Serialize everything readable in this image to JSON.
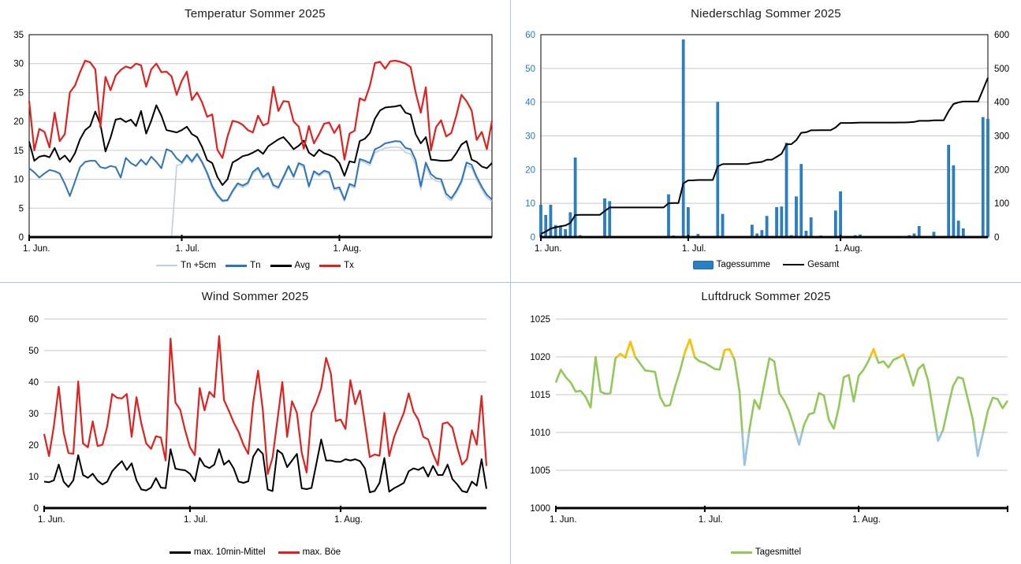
{
  "x_axis": {
    "tick_labels": [
      "1. Jun.",
      "1. Jul.",
      "1. Aug."
    ],
    "tick_day_indices": [
      0,
      30,
      61
    ],
    "num_days": 92
  },
  "colors": {
    "grid": "#c9c9c9",
    "axis": "#000000",
    "panel_border": "#aac6e0",
    "precip_axis_labels_left": "#1f7ac4",
    "tn5": "#bccfe5",
    "tn": "#2e75b6",
    "avg": "#000000",
    "tx": "#dd2321",
    "bar_fill": "#2980c5",
    "bar_stroke": "#1c6bab",
    "gesamt": "#000000",
    "mittel": "#000000",
    "boee": "#dd2321",
    "druck_green": "#92c85a",
    "druck_high": "#ffc000",
    "druck_low": "#9cc3e5"
  },
  "chart_data": [
    {
      "type": "line",
      "title": "Temperatur Sommer 2025",
      "ylabel": "",
      "ylim": [
        0,
        35
      ],
      "y_ticks": [
        0,
        5,
        10,
        15,
        20,
        25,
        30,
        35
      ],
      "grid": true,
      "legend_position": "bottom",
      "legend": [
        {
          "label": "Tn +5cm",
          "swatch": "line",
          "color": "#bccfe5",
          "thick": 2
        },
        {
          "label": "Tn",
          "swatch": "line",
          "color": "#2e75b6",
          "thick": 3
        },
        {
          "label": "Avg",
          "swatch": "line",
          "color": "#000000",
          "thick": 3
        },
        {
          "label": "Tx",
          "swatch": "line",
          "color": "#dd2321",
          "thick": 3
        }
      ],
      "series": [
        {
          "name": "Tn +5cm",
          "color": "#bccfe5",
          "width": 1.6,
          "values": [
            0,
            0,
            0,
            0,
            0,
            0,
            0,
            0,
            0,
            0,
            0,
            0,
            0,
            0,
            0,
            0,
            0,
            0,
            0,
            0,
            0,
            0,
            0,
            0,
            0,
            0,
            0,
            0,
            0,
            12.4,
            12.6,
            13.9,
            12.8,
            14.1,
            12.7,
            10.8,
            8.4,
            7.0,
            6.1,
            6.2,
            7.7,
            9.0,
            8.6,
            9.1,
            11.0,
            11.7,
            10.1,
            10.8,
            8.7,
            8.3,
            10.1,
            12.0,
            10.2,
            12.5,
            12.1,
            8.5,
            11.1,
            10.5,
            11.2,
            10.9,
            8.1,
            8.3,
            6.2,
            8.9,
            8.5,
            13.2,
            12.9,
            12.4,
            14.6,
            15.0,
            15.4,
            15.5,
            15.6,
            15.5,
            14.6,
            14.4,
            12.5,
            8.2,
            12.3,
            10.3,
            9.7,
            9.5,
            7.0,
            6.3,
            7.6,
            9.2,
            12.4,
            12.0,
            9.9,
            8.2,
            6.8,
            6.2
          ]
        },
        {
          "name": "Tn",
          "color": "#2e75b6",
          "width": 2,
          "values": [
            11.9,
            11.2,
            10.3,
            11.0,
            11.6,
            11.4,
            11.0,
            9.2,
            7.1,
            9.6,
            12.1,
            13.0,
            13.2,
            13.2,
            12.1,
            11.9,
            12.3,
            12.1,
            10.3,
            13.7,
            12.8,
            12.3,
            13.4,
            12.5,
            13.9,
            13.0,
            11.9,
            15.2,
            14.8,
            13.6,
            12.9,
            14.2,
            13.1,
            14.4,
            13.0,
            11.1,
            8.8,
            7.3,
            6.3,
            6.4,
            8.0,
            9.3,
            8.9,
            9.4,
            11.3,
            12.0,
            10.4,
            11.1,
            9.0,
            8.6,
            10.4,
            12.3,
            10.5,
            12.8,
            12.4,
            8.8,
            11.4,
            10.8,
            11.5,
            11.2,
            8.4,
            8.6,
            6.5,
            9.2,
            8.8,
            13.5,
            13.2,
            12.8,
            15.2,
            15.6,
            16.2,
            16.4,
            16.6,
            16.5,
            15.4,
            15.2,
            13.3,
            8.8,
            12.9,
            10.9,
            10.2,
            10.0,
            7.5,
            6.7,
            8.0,
            9.7,
            12.9,
            12.5,
            10.4,
            8.7,
            7.3,
            6.5
          ]
        },
        {
          "name": "Avg",
          "color": "#000000",
          "width": 2,
          "values": [
            16.5,
            13.2,
            13.9,
            14.1,
            13.8,
            15.4,
            13.4,
            14.1,
            13.0,
            14.5,
            16.9,
            18.5,
            19.2,
            21.7,
            19.5,
            14.8,
            17.2,
            20.3,
            20.5,
            19.9,
            20.3,
            19.2,
            21.8,
            17.9,
            20.1,
            22.8,
            21.0,
            18.5,
            18.3,
            18.1,
            18.5,
            19.1,
            17.8,
            17.3,
            15.6,
            13.3,
            12.8,
            10.4,
            9.0,
            10.0,
            12.9,
            13.4,
            14.0,
            14.2,
            14.6,
            15.1,
            14.4,
            15.7,
            16.3,
            16.9,
            17.3,
            16.3,
            15.2,
            15.8,
            16.7,
            14.6,
            14.0,
            15.1,
            14.5,
            14.2,
            13.8,
            12.8,
            10.6,
            13.1,
            12.9,
            16.6,
            17.0,
            18.0,
            20.5,
            21.9,
            22.4,
            22.5,
            22.6,
            22.8,
            21.5,
            21.2,
            17.8,
            16.2,
            17.3,
            13.4,
            13.3,
            13.2,
            13.2,
            13.3,
            14.5,
            16.0,
            16.6,
            13.4,
            13.0,
            12.2,
            11.9,
            12.8
          ]
        },
        {
          "name": "Tx",
          "color": "#dd2321",
          "width": 2.2,
          "values": [
            23.5,
            15.0,
            18.7,
            18.2,
            15.5,
            21.5,
            16.6,
            17.8,
            25.0,
            26.2,
            28.5,
            30.5,
            30.2,
            29.0,
            19.0,
            27.7,
            25.4,
            27.9,
            28.9,
            29.5,
            29.2,
            30.0,
            29.7,
            26.0,
            29.0,
            30.0,
            28.5,
            28.6,
            27.8,
            24.6,
            27.0,
            28.6,
            23.7,
            25.0,
            23.3,
            20.8,
            21.2,
            15.1,
            13.7,
            17.4,
            20.1,
            19.9,
            19.4,
            18.5,
            18.1,
            21.0,
            19.3,
            19.7,
            26.0,
            21.8,
            23.5,
            23.4,
            20.0,
            19.1,
            15.3,
            19.2,
            16.2,
            17.8,
            19.6,
            19.8,
            18.0,
            19.4,
            13.4,
            17.9,
            18.4,
            24.0,
            23.6,
            26.2,
            30.1,
            30.3,
            29.1,
            30.4,
            30.5,
            30.3,
            30.0,
            29.4,
            25.0,
            21.5,
            25.9,
            15.0,
            19.0,
            20.2,
            17.4,
            18.0,
            21.0,
            24.6,
            23.5,
            21.9,
            16.8,
            18.2,
            15.2,
            20.1
          ]
        }
      ]
    },
    {
      "type": "bar-line",
      "title": "Niederschlag Sommer 2025",
      "ylim": [
        0,
        60
      ],
      "y_ticks": [
        0,
        10,
        20,
        30,
        40,
        50,
        60
      ],
      "ylim_right": [
        0,
        600
      ],
      "y_ticks_right": [
        0,
        100,
        200,
        300,
        400,
        500,
        600
      ],
      "grid": true,
      "legend": [
        {
          "label": "Tagessumme",
          "swatch": "bar",
          "color": "#2980c5"
        },
        {
          "label": "Gesamt",
          "swatch": "line",
          "color": "#000000",
          "thick": 2
        }
      ],
      "bars": {
        "name": "Tagessumme",
        "color": "#2980c5",
        "values": [
          9.5,
          6.5,
          9.5,
          3.5,
          3.2,
          2.3,
          7.3,
          23.5,
          0.5,
          0,
          0,
          0,
          0,
          11.4,
          10.6,
          0,
          0,
          0,
          0,
          0,
          0,
          0,
          0,
          0,
          0,
          0,
          12.6,
          0.4,
          0,
          58.5,
          8.8,
          0.3,
          0.9,
          0,
          0,
          0,
          40.0,
          6.8,
          0.3,
          0,
          0,
          0,
          0,
          3.6,
          1.0,
          2.0,
          6.2,
          0,
          8.8,
          9.0,
          27.9,
          0.5,
          12.0,
          21.6,
          1.8,
          5.8,
          0,
          0.4,
          0,
          0,
          7.8,
          13.5,
          0,
          0,
          0.5,
          0.7,
          0,
          0,
          0,
          0,
          0,
          0,
          0,
          0.3,
          0,
          0.5,
          1.0,
          3.2,
          0,
          0,
          1.5,
          0,
          0,
          27.3,
          21.2,
          4.8,
          2.5,
          0,
          0,
          0,
          35.5,
          35.0
        ]
      },
      "line": {
        "name": "Gesamt",
        "color": "#000000",
        "width": 2,
        "axis": "right",
        "values": [
          9.5,
          16.0,
          25.5,
          29.0,
          32.2,
          34.5,
          41.8,
          65.3,
          65.8,
          65.8,
          65.8,
          65.8,
          65.8,
          77.2,
          87.8,
          87.8,
          87.8,
          87.8,
          87.8,
          87.8,
          87.8,
          87.8,
          87.8,
          87.8,
          87.8,
          87.8,
          100.4,
          100.8,
          100.8,
          159.3,
          168.1,
          168.4,
          169.3,
          169.3,
          169.3,
          169.3,
          209.3,
          216.1,
          216.4,
          216.4,
          216.4,
          216.4,
          216.4,
          220.0,
          221.0,
          223.0,
          229.2,
          229.2,
          238.0,
          247.0,
          274.9,
          275.4,
          287.4,
          309.0,
          310.8,
          316.6,
          316.6,
          317.0,
          317.0,
          317.0,
          324.8,
          338.3,
          338.3,
          338.3,
          338.8,
          339.5,
          339.5,
          339.5,
          339.5,
          339.5,
          339.5,
          339.5,
          339.5,
          339.8,
          339.8,
          340.3,
          341.3,
          344.5,
          344.5,
          344.5,
          346.0,
          346.0,
          346.0,
          373.3,
          394.5,
          399.3,
          401.8,
          401.8,
          401.8,
          401.8,
          437.3,
          472.3
        ]
      }
    },
    {
      "type": "line",
      "title": "Wind Sommer 2025",
      "ylim": [
        0,
        60
      ],
      "y_ticks": [
        0,
        10,
        20,
        30,
        40,
        50,
        60
      ],
      "grid": true,
      "legend": [
        {
          "label": "max. 10min-Mittel",
          "swatch": "line",
          "color": "#000000",
          "thick": 3
        },
        {
          "label": "max. Böe",
          "swatch": "line",
          "color": "#dd2321",
          "thick": 3
        }
      ],
      "series": [
        {
          "name": "max. 10min-Mittel",
          "color": "#000000",
          "width": 2,
          "values": [
            8.4,
            8.2,
            8.8,
            13.8,
            8.4,
            6.7,
            8.8,
            16.8,
            10.5,
            9.6,
            10.9,
            8.7,
            7.5,
            8.4,
            11.7,
            13.4,
            14.9,
            12.1,
            14.2,
            8.8,
            5.9,
            5.6,
            6.5,
            9.5,
            6.5,
            6.3,
            18.7,
            12.5,
            12.2,
            12.0,
            10.9,
            8.5,
            15.9,
            13.4,
            12.7,
            13.8,
            18.7,
            13.8,
            15.1,
            12.6,
            8.4,
            8.0,
            8.5,
            16.3,
            18.8,
            17.2,
            5.9,
            5.4,
            18.4,
            17.2,
            13.0,
            15.1,
            17.2,
            6.3,
            6.0,
            6.4,
            14.0,
            21.8,
            15.1,
            15.1,
            14.7,
            14.7,
            15.5,
            15.1,
            15.5,
            14.9,
            12.6,
            5.0,
            5.4,
            8.0,
            15.9,
            5.2,
            6.3,
            7.1,
            8.0,
            11.7,
            12.6,
            12.1,
            13.0,
            10.0,
            13.4,
            10.5,
            10.5,
            13.8,
            9.2,
            7.5,
            5.4,
            5.0,
            8.4,
            7.1,
            15.5,
            6.1
          ]
        },
        {
          "name": "max. Böe",
          "color": "#dd2321",
          "width": 2.2,
          "values": [
            23.5,
            16.5,
            26.0,
            38.5,
            24.0,
            17.5,
            17.2,
            40.2,
            20.5,
            19.3,
            27.5,
            19.7,
            20.1,
            26.0,
            36.2,
            35.0,
            34.8,
            36.2,
            22.6,
            35.2,
            26.8,
            20.5,
            18.8,
            22.8,
            22.4,
            15.1,
            53.8,
            33.5,
            31.2,
            24.7,
            19.3,
            16.8,
            38.1,
            31.0,
            36.9,
            35.2,
            54.6,
            34.3,
            30.9,
            27.2,
            24.2,
            20.1,
            17.2,
            33.4,
            43.6,
            31.0,
            10.8,
            16.0,
            28.0,
            40.0,
            22.6,
            33.9,
            30.2,
            17.6,
            11.3,
            30.2,
            33.5,
            38.1,
            47.7,
            42.7,
            27.6,
            28.1,
            25.1,
            40.6,
            33.0,
            37.3,
            26.8,
            16.2,
            17.0,
            16.6,
            30.2,
            16.5,
            22.6,
            26.4,
            30.2,
            36.4,
            30.6,
            28.0,
            22.6,
            21.8,
            17.2,
            13.6,
            26.8,
            27.2,
            25.5,
            19.3,
            13.8,
            15.5,
            24.7,
            20.1,
            35.6,
            13.4
          ]
        }
      ]
    },
    {
      "type": "zoned-line",
      "title": "Luftdruck Sommer 2025",
      "ylim": [
        1000,
        1025
      ],
      "y_ticks": [
        1000,
        1005,
        1010,
        1015,
        1020,
        1025
      ],
      "grid": true,
      "legend": [
        {
          "label": "Tagesmittel",
          "swatch": "line",
          "color": "#92c85a",
          "thick": 3
        }
      ],
      "zones": {
        "high_threshold": 1020,
        "high_color": "#ffc000",
        "low_threshold": 1010,
        "low_color": "#9cc3e5"
      },
      "series": [
        {
          "name": "Tagesmittel",
          "color": "#92c85a",
          "width": 2.6,
          "values": [
            1016.6,
            1018.3,
            1017.3,
            1016.6,
            1015.4,
            1015.5,
            1014.7,
            1013.3,
            1020.0,
            1015.4,
            1015.1,
            1015.2,
            1019.8,
            1020.4,
            1019.9,
            1022.0,
            1020.0,
            1019.1,
            1018.2,
            1018.1,
            1018.0,
            1014.7,
            1013.5,
            1013.6,
            1016.0,
            1018.1,
            1020.6,
            1022.3,
            1019.9,
            1019.4,
            1019.2,
            1018.8,
            1018.4,
            1018.3,
            1020.9,
            1021.0,
            1019.6,
            1015.4,
            1005.7,
            1010.4,
            1014.3,
            1013.1,
            1016.5,
            1019.8,
            1019.4,
            1015.2,
            1014.2,
            1012.8,
            1010.7,
            1008.4,
            1011.0,
            1012.4,
            1012.6,
            1015.2,
            1014.9,
            1011.7,
            1010.5,
            1013.3,
            1017.3,
            1017.6,
            1014.1,
            1017.5,
            1018.3,
            1019.5,
            1021.0,
            1019.2,
            1019.4,
            1018.6,
            1019.6,
            1019.9,
            1020.3,
            1018.4,
            1016.2,
            1018.4,
            1019.0,
            1016.8,
            1012.9,
            1008.9,
            1010.3,
            1013.3,
            1016.1,
            1017.3,
            1017.1,
            1014.4,
            1011.7,
            1006.9,
            1009.8,
            1012.8,
            1014.6,
            1014.4,
            1013.2,
            1014.2
          ]
        }
      ]
    }
  ]
}
